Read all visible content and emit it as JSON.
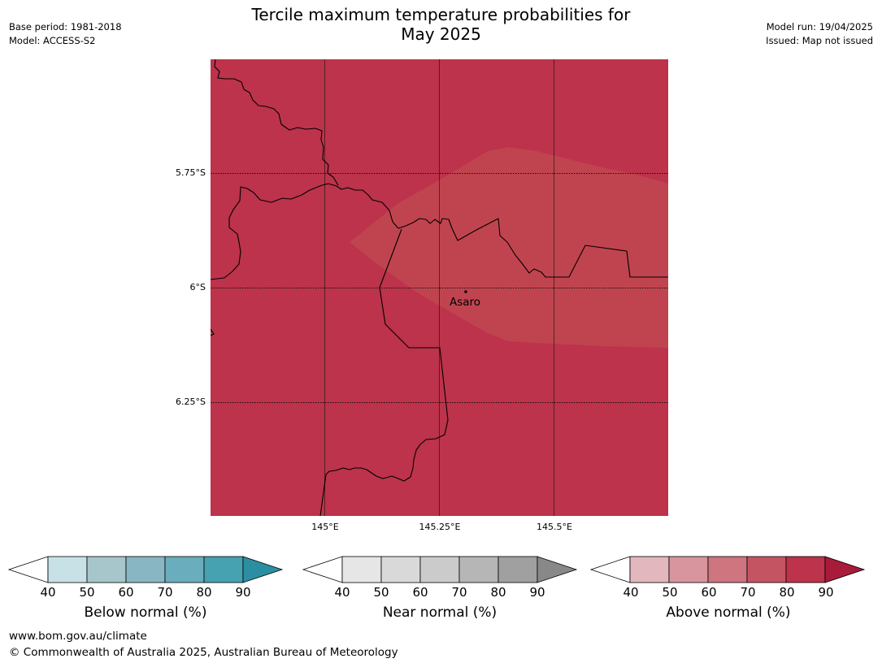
{
  "title": {
    "line1": "Tercile maximum temperature probabilities for",
    "line2": "May 2025"
  },
  "meta": {
    "base_period": "Base period: 1981-2018",
    "model": "Model: ACCESS-S2",
    "model_run": "Model run: 19/04/2025",
    "issued": "Issued: Map not issued"
  },
  "map": {
    "background_color": "#bc334b",
    "overlay_color": "#c0444f",
    "place_label": "Asaro",
    "lat_labels": [
      "5.75°S",
      "6°S",
      "6.25°S"
    ],
    "lon_labels": [
      "145°E",
      "145.25°E",
      "145.5°E"
    ]
  },
  "colorbars": [
    {
      "title": "Below normal (%)",
      "ticks": [
        "40",
        "50",
        "60",
        "70",
        "80",
        "90"
      ],
      "colors": [
        "#ffffff",
        "#c8e1e6",
        "#a7c6cc",
        "#88b6c3",
        "#6aadbc",
        "#46a1b1",
        "#2b8fa1"
      ]
    },
    {
      "title": "Near normal (%)",
      "ticks": [
        "40",
        "50",
        "60",
        "70",
        "80",
        "90"
      ],
      "colors": [
        "#ffffff",
        "#e6e6e6",
        "#d9d9d9",
        "#cbcbcb",
        "#b6b6b6",
        "#a0a0a0",
        "#888888"
      ]
    },
    {
      "title": "Above normal (%)",
      "ticks": [
        "40",
        "50",
        "60",
        "70",
        "80",
        "90"
      ],
      "colors": [
        "#ffffff",
        "#e2b7bd",
        "#d8959e",
        "#ce757f",
        "#c55463",
        "#bc334b",
        "#a81b3a"
      ]
    }
  ],
  "footer": {
    "url": "www.bom.gov.au/climate",
    "copyright": "© Commonwealth of Australia 2025, Australian Bureau of Meteorology"
  }
}
